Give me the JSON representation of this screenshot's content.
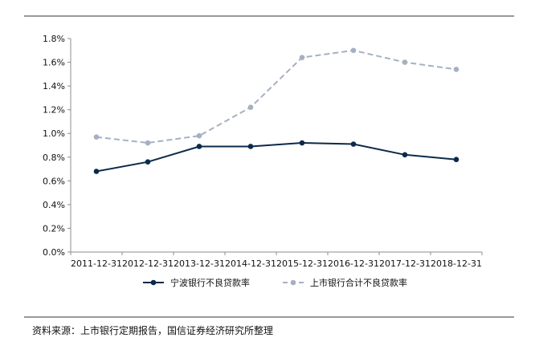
{
  "source_note": "资料来源：上市银行定期报告，国信证券经济研究所整理",
  "chart_data": {
    "type": "line",
    "title": "",
    "xlabel": "",
    "ylabel": "",
    "categories": [
      "2011-12-31",
      "2012-12-31",
      "2013-12-31",
      "2014-12-31",
      "2015-12-31",
      "2016-12-31",
      "2017-12-31",
      "2018-12-31"
    ],
    "ylim": [
      0,
      1.8
    ],
    "ytick_values": [
      0,
      0.2,
      0.4,
      0.6,
      0.8,
      1.0,
      1.2,
      1.4,
      1.6,
      1.8
    ],
    "ytick_labels": [
      "0.0%",
      "0.2%",
      "0.4%",
      "0.6%",
      "0.8%",
      "1.0%",
      "1.2%",
      "1.4%",
      "1.6%",
      "1.8%"
    ],
    "grid": false,
    "legend_position": "bottom",
    "series": [
      {
        "name": "宁波银行不良贷款率",
        "values": [
          0.68,
          0.76,
          0.89,
          0.89,
          0.92,
          0.91,
          0.82,
          0.78
        ],
        "color": "#0b2a4a",
        "line_style": "solid"
      },
      {
        "name": "上市银行合计不良贷款率",
        "values": [
          0.97,
          0.92,
          0.98,
          1.22,
          1.64,
          1.7,
          1.6,
          1.54
        ],
        "color": "#a5b1c2",
        "line_style": "dashed"
      }
    ]
  }
}
